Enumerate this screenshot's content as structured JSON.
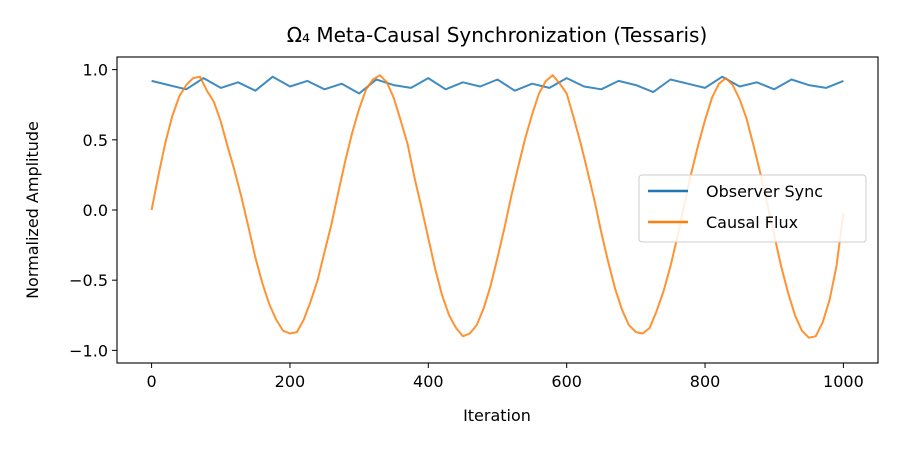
{
  "chart_data": {
    "type": "line",
    "title": "Ω₄ Meta-Causal Synchronization (Tessaris)",
    "xlabel": "Iteration",
    "ylabel": "Normalized Amplitude",
    "xlim": [
      -50,
      1050
    ],
    "ylim": [
      -1.09,
      1.09
    ],
    "xticks": [
      0,
      200,
      400,
      600,
      800,
      1000
    ],
    "xtick_labels": [
      "0",
      "200",
      "400",
      "600",
      "800",
      "1000"
    ],
    "yticks": [
      -1.0,
      -0.5,
      0.0,
      0.5,
      1.0
    ],
    "ytick_labels": [
      "−1.0",
      "−0.5",
      "0.0",
      "0.5",
      "1.0"
    ],
    "grid": false,
    "legend_position": "center-right",
    "series": [
      {
        "name": "Observer Sync",
        "color": "#1f77b4",
        "x": [
          0,
          25,
          50,
          75,
          100,
          125,
          150,
          175,
          200,
          225,
          250,
          275,
          300,
          325,
          350,
          375,
          400,
          425,
          450,
          475,
          500,
          525,
          550,
          575,
          600,
          625,
          650,
          675,
          700,
          725,
          750,
          775,
          800,
          825,
          850,
          875,
          900,
          925,
          950,
          975,
          1000
        ],
        "y": [
          0.92,
          0.89,
          0.86,
          0.94,
          0.87,
          0.91,
          0.85,
          0.95,
          0.88,
          0.92,
          0.86,
          0.9,
          0.83,
          0.93,
          0.89,
          0.87,
          0.94,
          0.86,
          0.91,
          0.88,
          0.93,
          0.85,
          0.9,
          0.87,
          0.94,
          0.88,
          0.86,
          0.92,
          0.89,
          0.84,
          0.93,
          0.9,
          0.87,
          0.95,
          0.88,
          0.91,
          0.86,
          0.93,
          0.89,
          0.87,
          0.92
        ]
      },
      {
        "name": "Causal Flux",
        "color": "#ff7f0e",
        "x": [
          0,
          10,
          20,
          30,
          40,
          50,
          60,
          70,
          80,
          90,
          100,
          110,
          120,
          130,
          140,
          150,
          160,
          170,
          180,
          190,
          200,
          210,
          220,
          230,
          240,
          250,
          260,
          270,
          280,
          290,
          300,
          310,
          320,
          330,
          340,
          350,
          360,
          370,
          380,
          390,
          400,
          410,
          420,
          430,
          440,
          450,
          460,
          470,
          480,
          490,
          500,
          510,
          520,
          530,
          540,
          550,
          560,
          570,
          580,
          590,
          600,
          610,
          620,
          630,
          640,
          650,
          660,
          670,
          680,
          690,
          700,
          710,
          720,
          730,
          740,
          750,
          760,
          770,
          780,
          790,
          800,
          810,
          820,
          830,
          840,
          850,
          860,
          870,
          880,
          890,
          900,
          910,
          920,
          930,
          940,
          950,
          960,
          970,
          980,
          990,
          1000
        ],
        "y": [
          0.0,
          0.25,
          0.48,
          0.67,
          0.81,
          0.89,
          0.94,
          0.95,
          0.85,
          0.77,
          0.63,
          0.45,
          0.28,
          0.09,
          -0.12,
          -0.34,
          -0.52,
          -0.67,
          -0.78,
          -0.86,
          -0.88,
          -0.87,
          -0.78,
          -0.65,
          -0.5,
          -0.3,
          -0.1,
          0.13,
          0.35,
          0.55,
          0.72,
          0.86,
          0.93,
          0.96,
          0.91,
          0.8,
          0.64,
          0.47,
          0.23,
          0.02,
          -0.2,
          -0.42,
          -0.61,
          -0.75,
          -0.84,
          -0.9,
          -0.88,
          -0.82,
          -0.7,
          -0.54,
          -0.34,
          -0.13,
          0.1,
          0.31,
          0.51,
          0.68,
          0.83,
          0.92,
          0.96,
          0.9,
          0.83,
          0.66,
          0.48,
          0.28,
          0.07,
          -0.16,
          -0.37,
          -0.56,
          -0.71,
          -0.82,
          -0.87,
          -0.88,
          -0.84,
          -0.72,
          -0.58,
          -0.4,
          -0.19,
          0.04,
          0.26,
          0.46,
          0.64,
          0.8,
          0.9,
          0.94,
          0.89,
          0.79,
          0.65,
          0.46,
          0.26,
          0.04,
          -0.18,
          -0.4,
          -0.59,
          -0.75,
          -0.86,
          -0.91,
          -0.9,
          -0.8,
          -0.64,
          -0.4,
          -0.02
        ]
      }
    ]
  }
}
